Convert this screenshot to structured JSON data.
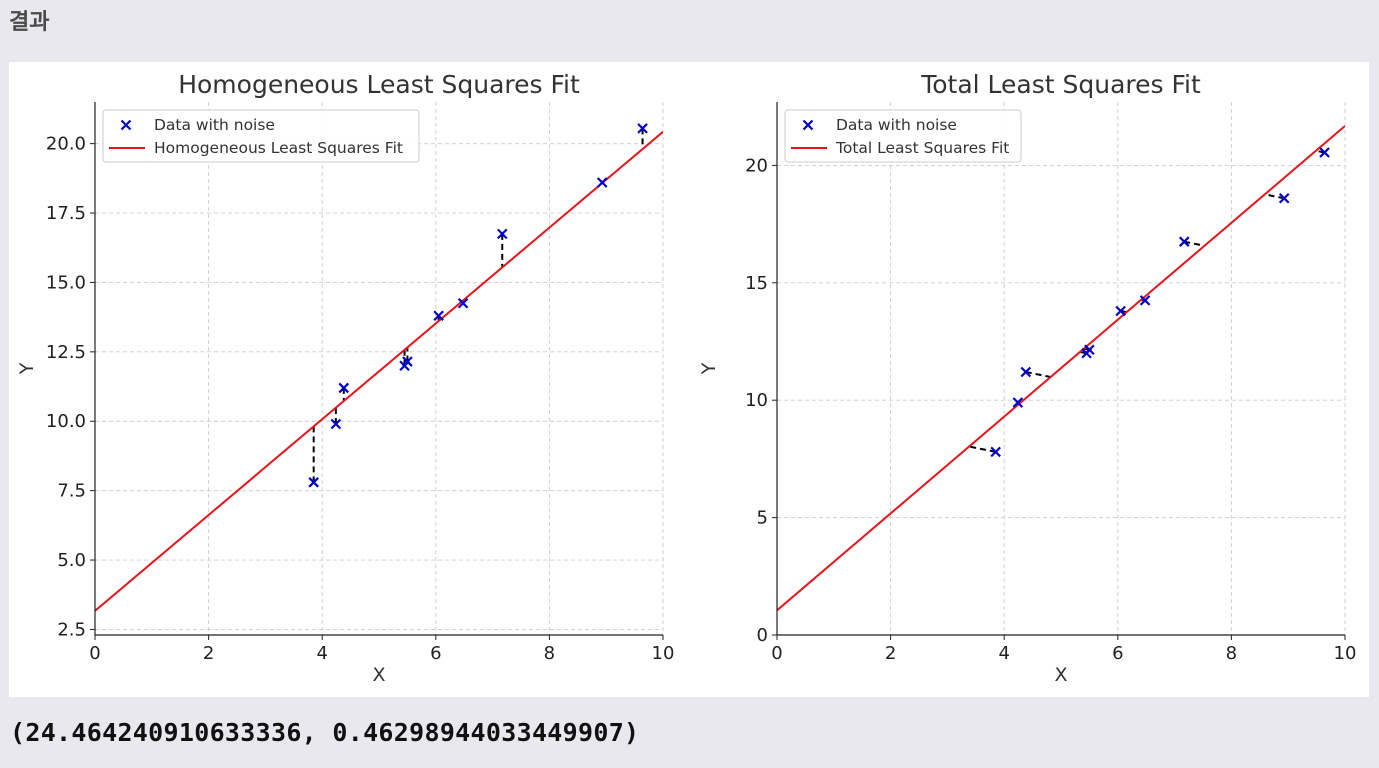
{
  "header": {
    "title": "결과"
  },
  "output": {
    "text": "(24.464240910633336, 0.46298944033449907)"
  },
  "colors": {
    "data": "#0000cc",
    "fit": "#e8141b",
    "residual": "#000000",
    "grid": "#cccccc",
    "axis": "#222222"
  },
  "chart_data": [
    {
      "type": "scatter",
      "title": "Homogeneous Least Squares Fit",
      "xlabel": "X",
      "ylabel": "Y",
      "xlim": [
        0,
        10
      ],
      "ylim": [
        2.3,
        21.5
      ],
      "xticks": [
        0,
        2,
        4,
        6,
        8,
        10
      ],
      "yticks": [
        2.5,
        5.0,
        7.5,
        10.0,
        12.5,
        15.0,
        17.5,
        20.0
      ],
      "ytick_labels": [
        "2.5",
        "5.0",
        "7.5",
        "10.0",
        "12.5",
        "15.0",
        "17.5",
        "20.0"
      ],
      "grid": true,
      "legend_position": "upper-left",
      "legend": [
        "Data with noise",
        "Homogeneous Least Squares Fit"
      ],
      "series": [
        {
          "name": "Data with noise",
          "x": [
            3.85,
            4.24,
            4.38,
            5.45,
            5.5,
            6.05,
            6.48,
            7.17,
            8.93,
            9.64
          ],
          "y": [
            7.8,
            9.9,
            11.2,
            12.0,
            12.15,
            13.8,
            14.25,
            16.75,
            18.6,
            20.55
          ]
        },
        {
          "name": "Homogeneous Least Squares Fit",
          "line": {
            "slope": 1.7257,
            "intercept": 3.17
          }
        }
      ],
      "residuals": "vertical"
    },
    {
      "type": "scatter",
      "title": "Total Least Squares Fit",
      "xlabel": "X",
      "ylabel": "Y",
      "xlim": [
        0,
        10
      ],
      "ylim": [
        0,
        22.7
      ],
      "xticks": [
        0,
        2,
        4,
        6,
        8,
        10
      ],
      "yticks": [
        0,
        5,
        10,
        15,
        20
      ],
      "ytick_labels": [
        "0",
        "5",
        "10",
        "15",
        "20"
      ],
      "grid": true,
      "legend_position": "upper-left",
      "legend": [
        "Data with noise",
        "Total Least Squares Fit"
      ],
      "series": [
        {
          "name": "Data with noise",
          "x": [
            3.85,
            4.24,
            4.38,
            5.45,
            5.5,
            6.05,
            6.48,
            7.17,
            8.93,
            9.64
          ],
          "y": [
            7.8,
            9.9,
            11.2,
            12.0,
            12.15,
            13.8,
            14.25,
            16.75,
            18.6,
            20.55
          ]
        },
        {
          "name": "Total Least Squares Fit",
          "line": {
            "slope": 2.063,
            "intercept": 1.05
          }
        }
      ],
      "residuals": "perpendicular"
    }
  ]
}
